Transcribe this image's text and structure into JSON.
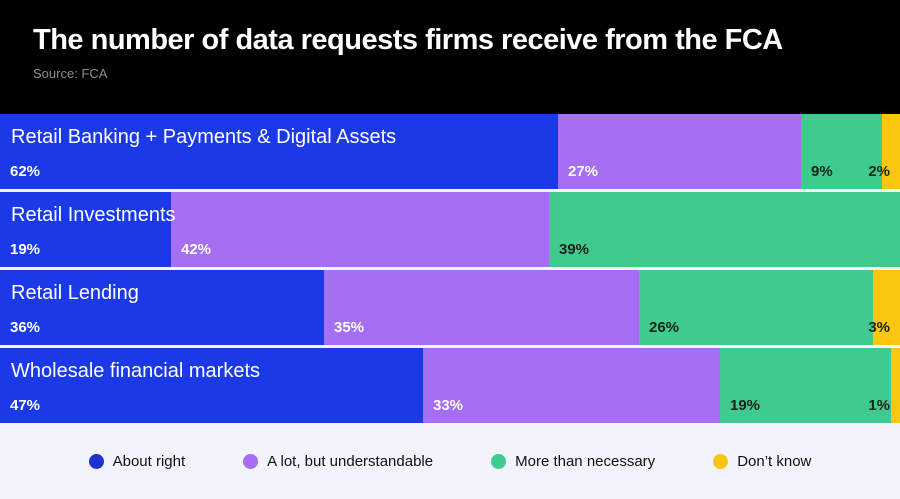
{
  "page": {
    "background": "#F2F4FB"
  },
  "header": {
    "title": "The number of data requests firms receive from the FCA",
    "source": "Source: FCA",
    "background": "#000000",
    "title_color": "#FFFFFF",
    "source_color": "#8E8E8E"
  },
  "chart_data": {
    "type": "bar",
    "variant": "horizontal-stacked",
    "title": "The number of data requests firms receive from the FCA",
    "source": "Source: FCA",
    "unit": "%",
    "value_suffix": "%",
    "xlim": [
      0,
      100
    ],
    "grid": false,
    "legend_position": "bottom",
    "categories": [
      "Retail Banking + Payments & Digital Assets",
      "Retail Investments",
      "Retail Lending",
      "Wholesale financial markets"
    ],
    "series": [
      {
        "name": "About right",
        "color": "#1C39E8",
        "label_color": "#FFFFFF",
        "values": [
          62,
          19,
          36,
          47
        ]
      },
      {
        "name": "A lot, but understandable",
        "color": "#A56EF3",
        "label_color": "#FFFFFF",
        "values": [
          27,
          42,
          35,
          33
        ]
      },
      {
        "name": "More than necessary",
        "color": "#3FCB8D",
        "label_color": "#17211B",
        "values": [
          9,
          39,
          26,
          19
        ]
      },
      {
        "name": "Don’t know",
        "color": "#F9C70F",
        "label_color": "#17211B",
        "values": [
          2,
          0,
          3,
          1
        ]
      }
    ],
    "row_totals": [
      100,
      100,
      100,
      100
    ]
  },
  "legend": {
    "text_color": "#111111",
    "dot_colors": [
      "#1D33CB",
      "#A56EF3",
      "#3FCB8D",
      "#F9C70F"
    ]
  }
}
